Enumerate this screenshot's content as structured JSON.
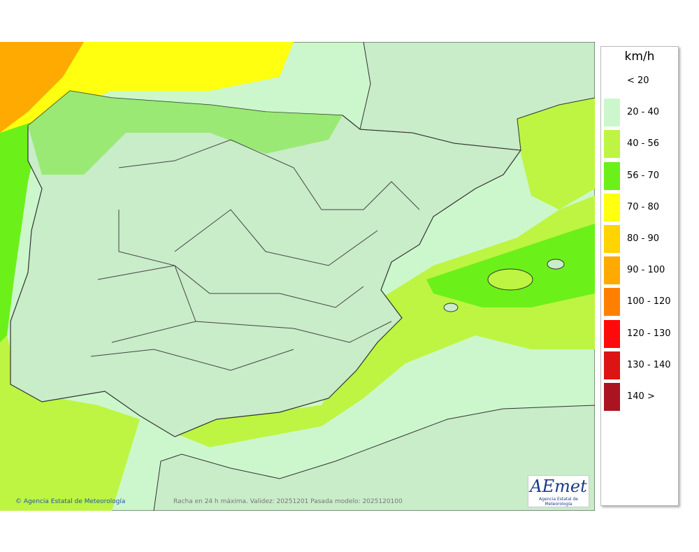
{
  "legend": {
    "unit": "km/h",
    "items": [
      {
        "label": "< 20"
      },
      {
        "label": "20 - 40",
        "color": "#ccf7cc"
      },
      {
        "label": "40 - 56",
        "color": "#bdf542"
      },
      {
        "label": "56 - 70",
        "color": "#6cf01a"
      },
      {
        "label": "70 - 80",
        "color": "#ffff10"
      },
      {
        "label": "80 - 90",
        "color": "#ffd400"
      },
      {
        "label": "90 - 100",
        "color": "#ffaa00"
      },
      {
        "label": "100 - 120",
        "color": "#ff8000"
      },
      {
        "label": "120 - 130",
        "color": "#ff0a0a"
      },
      {
        "label": "130 - 140",
        "color": "#dd1414"
      },
      {
        "label": "140 >",
        "color": "#aa1420"
      }
    ]
  },
  "footer": {
    "credit": "Agencia Estatal de Meteorología",
    "caption": "Racha en 24 h máxima. Validez: 20251201 Pasada modelo: 2025120100"
  },
  "logo": {
    "name": "AEmet",
    "subtitle": "Agencia Estatal de Meteorología"
  }
}
